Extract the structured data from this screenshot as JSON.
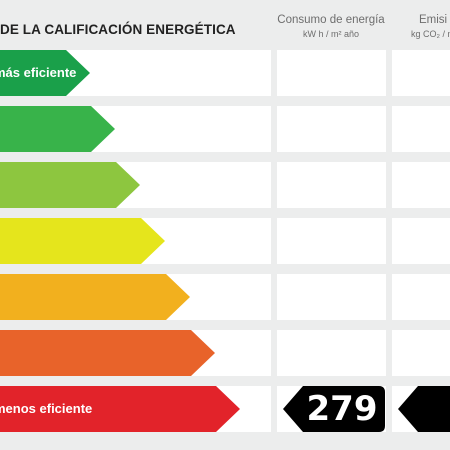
{
  "header": {
    "title": "DE LA CALIFICACIÓN ENERGÉTICA",
    "consumption": {
      "title": "Consumo de energía",
      "unit": "kW h / m² año"
    },
    "emissions": {
      "title": "Emisi",
      "unit": "kg CO₂ / m"
    }
  },
  "scale": {
    "classes": [
      {
        "color": "#1aa04a",
        "label": "más eficiente"
      },
      {
        "color": "#38b34a",
        "label": ""
      },
      {
        "color": "#8dc63f",
        "label": ""
      },
      {
        "color": "#e5e51c",
        "label": ""
      },
      {
        "color": "#f2b01e",
        "label": ""
      },
      {
        "color": "#e8632a",
        "label": ""
      },
      {
        "color": "#e2232a",
        "label": "menos eficiente"
      }
    ]
  },
  "rating": {
    "class_index": 6,
    "consumption_value": "279",
    "emissions_value": ""
  }
}
